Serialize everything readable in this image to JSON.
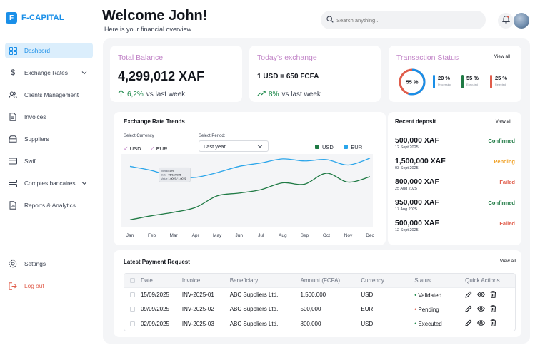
{
  "app": {
    "logo_letter": "F",
    "name": "F-CAPITAL"
  },
  "header": {
    "welcome": "Welcome John!",
    "subtitle": "Here is your financial overview.",
    "search_placeholder": "Search anything..."
  },
  "sidebar": {
    "items": [
      {
        "label": "Dashbord",
        "icon": "grid-icon",
        "active": true
      },
      {
        "label": "Exchange Rates",
        "icon": "dollar-icon",
        "has_chevron": true
      },
      {
        "label": "Clients Management",
        "icon": "users-icon"
      },
      {
        "label": "Invoices",
        "icon": "document-icon"
      },
      {
        "label": "Suppliers",
        "icon": "box-icon"
      },
      {
        "label": "Swift",
        "icon": "card-icon"
      },
      {
        "label": "Comptes bancaires",
        "icon": "server-icon",
        "has_chevron": true
      },
      {
        "label": "Reports & Analytics",
        "icon": "report-icon"
      }
    ],
    "settings": "Settings",
    "logout": "Log out"
  },
  "balance": {
    "title": "Total Balance",
    "value": "4,299,012 XAF",
    "trend_pct": "6,2%",
    "trend_text": "vs last week"
  },
  "exchange": {
    "title": "Today's exchange",
    "rate": "1 USD = 650 FCFA",
    "trend_pct": "8%",
    "trend_text": "vs last week"
  },
  "status": {
    "title": "Transaction Status",
    "view_all": "View all",
    "donut_label": "55 %",
    "donut_fraction": 0.55,
    "items": [
      {
        "value": "20 %",
        "label": "Processing",
        "color": "#1a8fe8"
      },
      {
        "value": "55 %",
        "label": "Executed",
        "color": "#1f7a44"
      },
      {
        "value": "25 %",
        "label": "Rejected",
        "color": "#e05d4b"
      }
    ]
  },
  "chart_data": {
    "type": "line",
    "title": "Exchange Rate Trends",
    "select_currency_label": "Select Currency",
    "currencies": [
      "USD",
      "EUR"
    ],
    "select_period_label": "Select Period:",
    "period": "Last year",
    "categories": [
      "Jan",
      "Feb",
      "Mar",
      "Apr",
      "May",
      "Jun",
      "Jul",
      "Aug",
      "Sep",
      "Oct",
      "Nov",
      "Dec"
    ],
    "ylim": [
      0,
      100
    ],
    "grid": false,
    "series": [
      {
        "name": "USD",
        "color": "#1f7a44",
        "values": [
          8,
          14,
          19,
          26,
          43,
          47,
          52,
          62,
          60,
          76,
          63,
          71
        ]
      },
      {
        "name": "EUR",
        "color": "#2aa5ea",
        "values": [
          86,
          80,
          71,
          70,
          77,
          86,
          91,
          97,
          94,
          96,
          88,
          98
        ]
      }
    ],
    "tooltip": {
      "rows": [
        {
          "key": "Metric",
          "val": "EUR"
        },
        {
          "key": "Date",
          "val": "06/12/2025"
        },
        {
          "key": "Value",
          "val": "1.0097 / 1.0076"
        }
      ]
    }
  },
  "deposits": {
    "title": "Recent deposit",
    "view_all": "View all",
    "items": [
      {
        "amount": "500,000 XAF",
        "date": "12 Sept 2025",
        "status": "Confirmed",
        "color": "#1f7a44"
      },
      {
        "amount": "1,500,000 XAF",
        "date": "03 Sept 2025",
        "status": "Pending",
        "color": "#f0a32b"
      },
      {
        "amount": "800,000 XAF",
        "date": "25 Aug 2025",
        "status": "Failed",
        "color": "#e05d4b"
      },
      {
        "amount": "950,000 XAF",
        "date": "17 Aug 2025",
        "status": "Confirmed",
        "color": "#1f7a44"
      },
      {
        "amount": "500,000 XAF",
        "date": "12 Sept 2025",
        "status": "Failed",
        "color": "#e05d4b"
      }
    ]
  },
  "payments": {
    "title": "Latest Payment Request",
    "view_all": "View all",
    "columns": [
      "Date",
      "Invoice",
      "Beneficiary",
      "Amount (FCFA)",
      "Currency",
      "Status",
      "Quick Actions"
    ],
    "rows": [
      {
        "date": "15/09/2025",
        "invoice": "INV-2025-01",
        "beneficiary": "ABC Suppliers Ltd.",
        "amount": "1,500,000",
        "currency": "USD",
        "status": "Validated",
        "status_color": "#1f8a4c"
      },
      {
        "date": "09/09/2025",
        "invoice": "INV-2025-02",
        "beneficiary": "ABC Suppliers Ltd.",
        "amount": "500,000",
        "currency": "EUR",
        "status": "Pending",
        "status_color": "#e05d4b"
      },
      {
        "date": "02/09/2025",
        "invoice": "INV-2025-03",
        "beneficiary": "ABC Suppliers Ltd.",
        "amount": "800,000",
        "currency": "USD",
        "status": "Executed",
        "status_color": "#1f8a4c"
      }
    ]
  }
}
